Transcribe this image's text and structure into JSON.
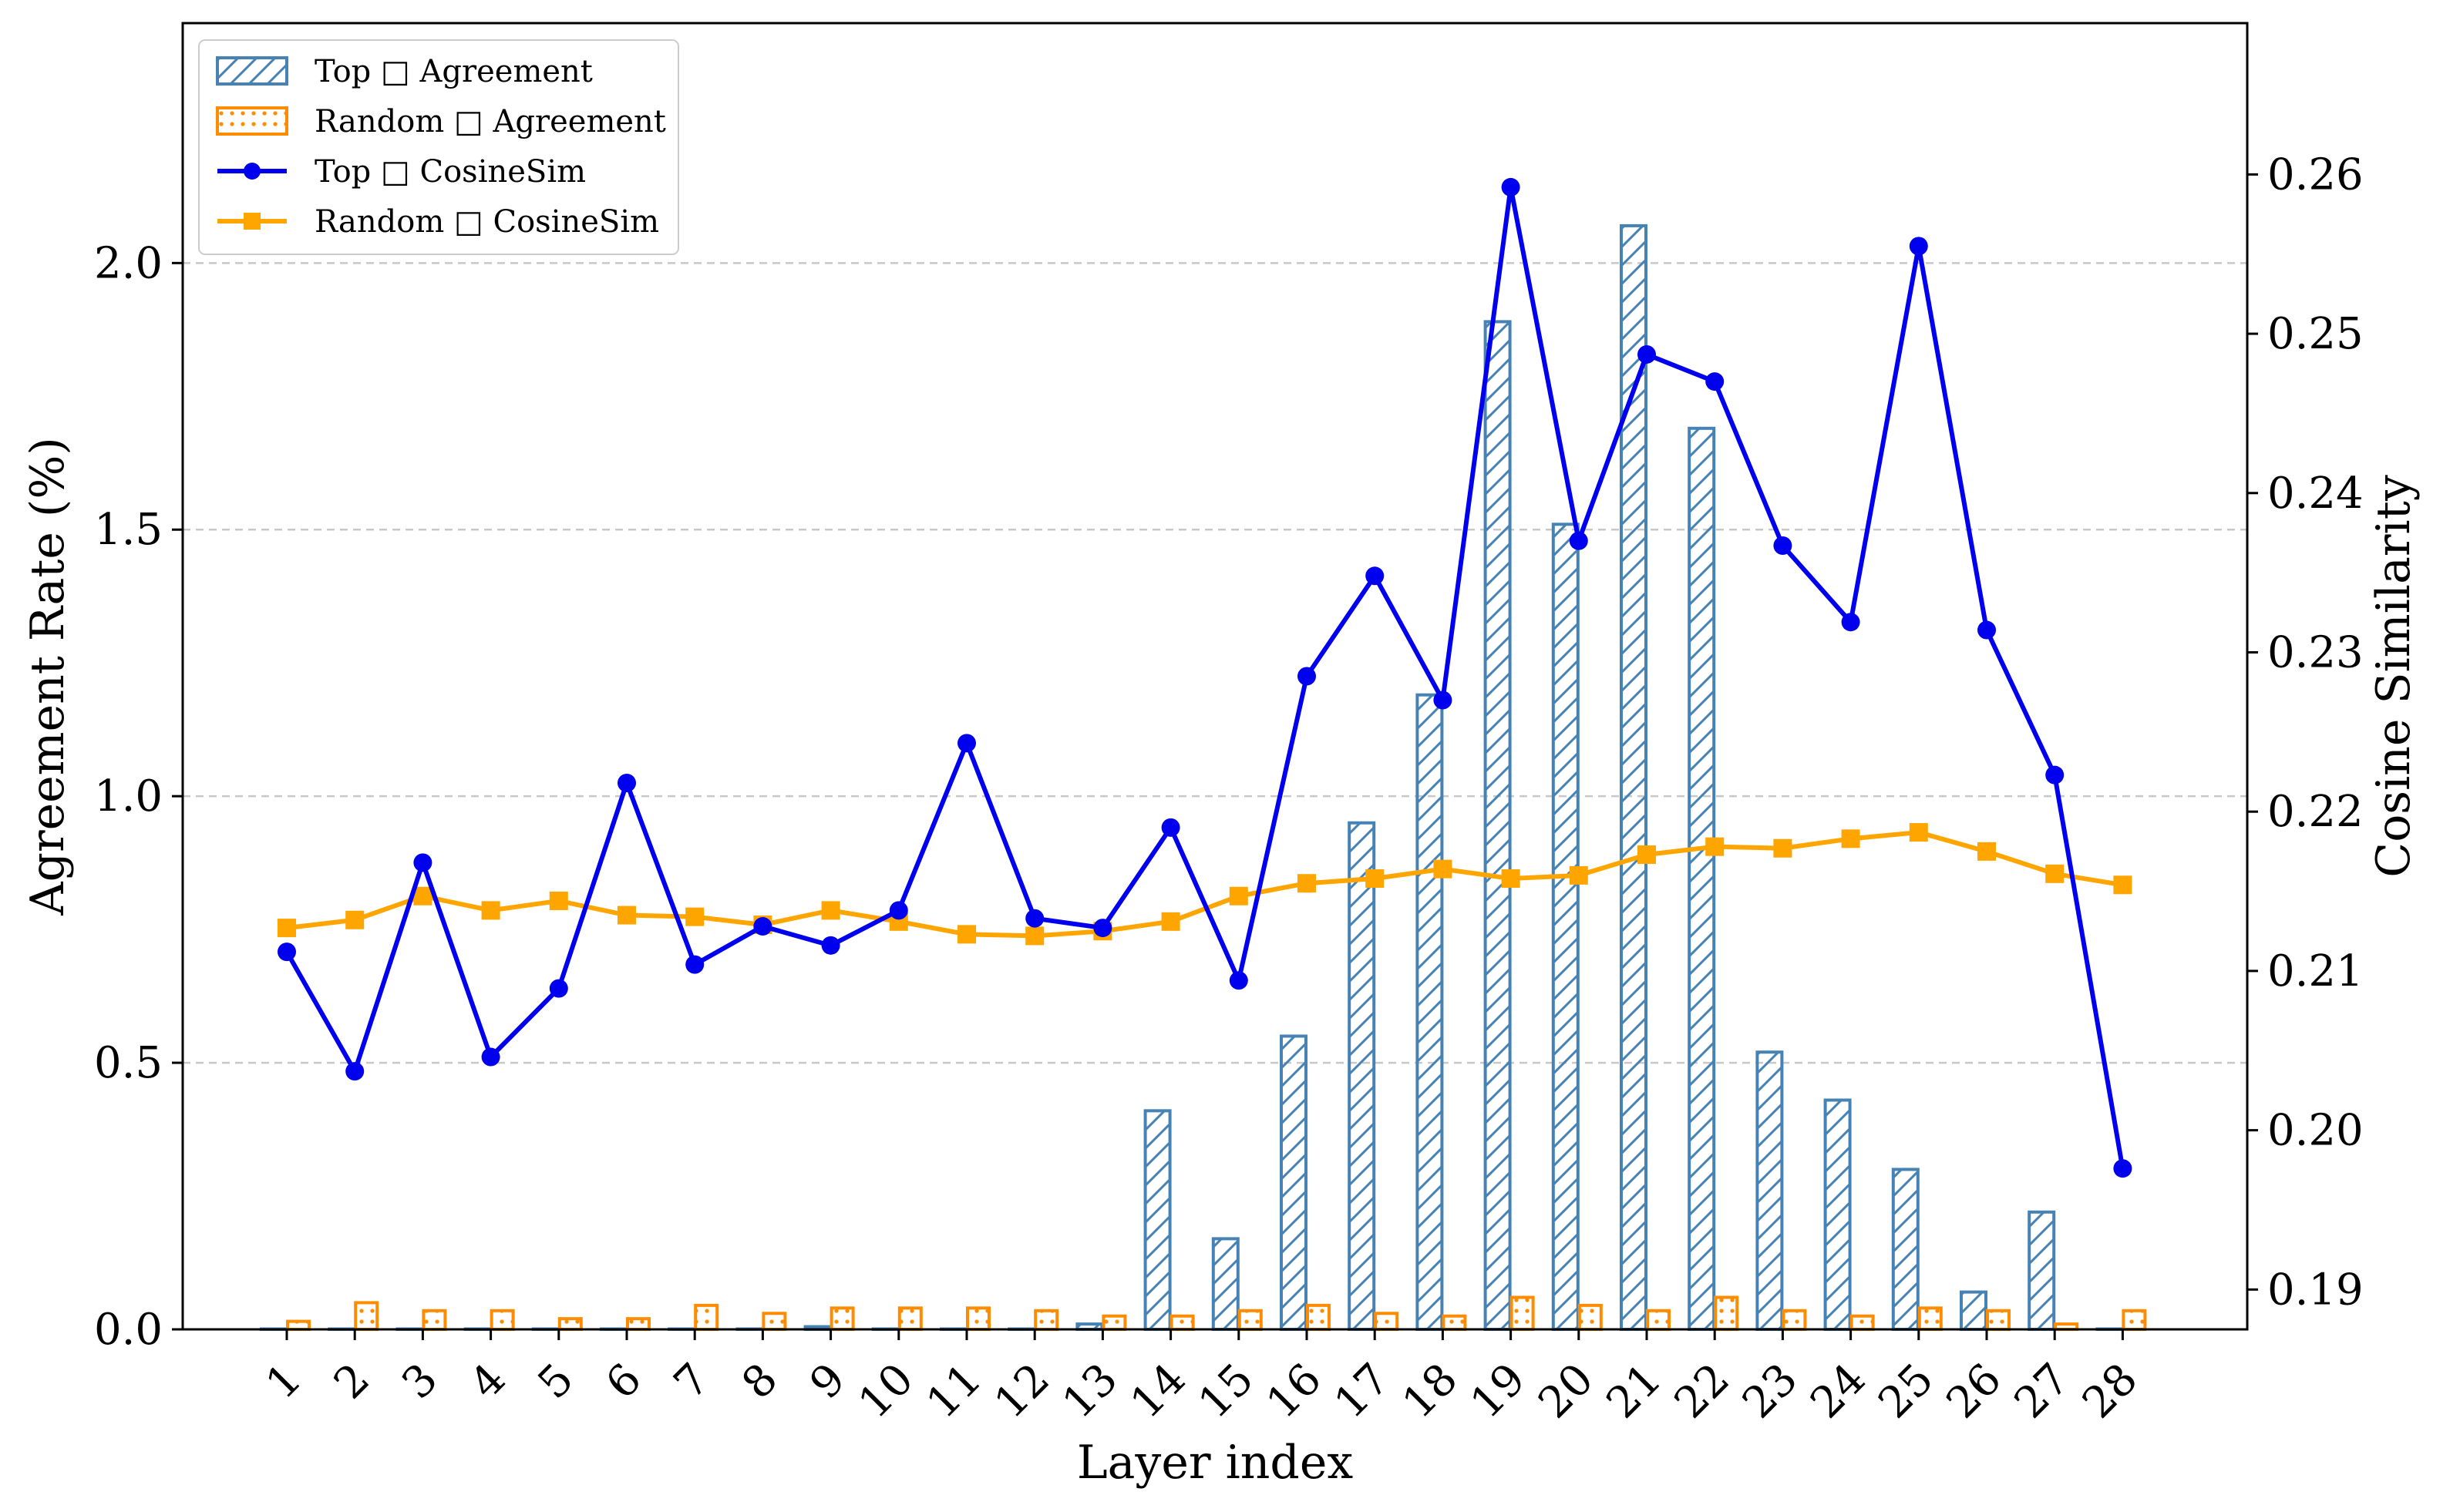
{
  "chart_data": {
    "type": "bar",
    "title": "",
    "xlabel": "Layer index",
    "ylabel": "Agreement Rate (%)",
    "y2label": "Cosine Similarity",
    "categories": [
      "1",
      "2",
      "3",
      "4",
      "5",
      "6",
      "7",
      "8",
      "9",
      "10",
      "11",
      "12",
      "13",
      "14",
      "15",
      "16",
      "17",
      "18",
      "19",
      "20",
      "21",
      "22",
      "23",
      "24",
      "25",
      "26",
      "27",
      "28"
    ],
    "ylim": [
      0,
      2.45
    ],
    "y_ticks": [
      0.0,
      0.5,
      1.0,
      1.5,
      2.0
    ],
    "y_tick_labels": [
      "0.0",
      "0.5",
      "1.0",
      "1.5",
      "2.0"
    ],
    "y2lim": [
      0.1875,
      0.2695
    ],
    "y2_ticks": [
      0.19,
      0.2,
      0.21,
      0.22,
      0.23,
      0.24,
      0.25,
      0.26
    ],
    "y2_tick_labels": [
      "0.19",
      "0.20",
      "0.21",
      "0.22",
      "0.23",
      "0.24",
      "0.25",
      "0.26"
    ],
    "grid": "horizontal dashed",
    "legend_position": "top-left",
    "colors": {
      "top_bar": "#4682b4",
      "random_bar": "#ff8c00",
      "top_line": "#0000ee",
      "random_line": "#ffa500"
    },
    "series": [
      {
        "name": "Top □ Agreement",
        "kind": "bar",
        "axis": "left",
        "hatch": "diagonal",
        "values": [
          0.0,
          0.0,
          0.0,
          0.0,
          0.0,
          0.0,
          0.0,
          0.0,
          0.005,
          0.0,
          0.0,
          0.0,
          0.01,
          0.41,
          0.17,
          0.55,
          0.95,
          1.19,
          1.89,
          1.51,
          2.07,
          1.69,
          0.52,
          0.43,
          0.3,
          0.07,
          0.22,
          0.0
        ]
      },
      {
        "name": "Random □ Agreement",
        "kind": "bar",
        "axis": "left",
        "hatch": "dots",
        "values": [
          0.015,
          0.05,
          0.035,
          0.035,
          0.02,
          0.02,
          0.045,
          0.03,
          0.04,
          0.04,
          0.04,
          0.035,
          0.025,
          0.025,
          0.035,
          0.045,
          0.03,
          0.025,
          0.06,
          0.045,
          0.035,
          0.06,
          0.035,
          0.025,
          0.04,
          0.035,
          0.01,
          0.035
        ]
      },
      {
        "name": "Top □ CosineSim",
        "kind": "line",
        "marker": "circle",
        "axis": "right",
        "values": [
          0.2112,
          0.2037,
          0.2168,
          0.2046,
          0.2089,
          0.2218,
          0.2104,
          0.2128,
          0.2116,
          0.2138,
          0.2243,
          0.2133,
          0.2127,
          0.219,
          0.2094,
          0.2285,
          0.2348,
          0.227,
          0.2592,
          0.237,
          0.2487,
          0.247,
          0.2367,
          0.2319,
          0.2555,
          0.2314,
          0.2223,
          0.1976
        ]
      },
      {
        "name": "Random □ CosineSim",
        "kind": "line",
        "marker": "square",
        "axis": "right",
        "values": [
          0.2127,
          0.2132,
          0.2147,
          0.2138,
          0.2144,
          0.2135,
          0.2134,
          0.2129,
          0.2138,
          0.2131,
          0.2123,
          0.2122,
          0.2125,
          0.2131,
          0.2147,
          0.2155,
          0.2158,
          0.2164,
          0.2158,
          0.216,
          0.2173,
          0.2178,
          0.2177,
          0.2183,
          0.2187,
          0.2175,
          0.2161,
          0.2154
        ]
      }
    ]
  }
}
